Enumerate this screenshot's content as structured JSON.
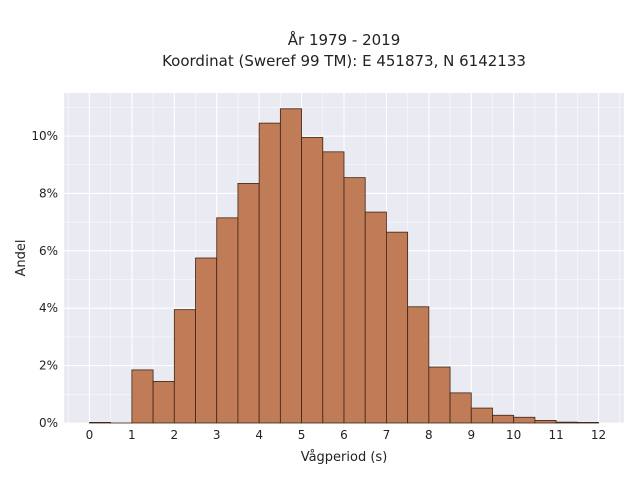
{
  "chart_data": {
    "type": "bar",
    "title": "År 1979 - 2019",
    "subtitle": "Koordinat (Sweref 99 TM): E 451873, N 6142133",
    "xlabel": "Vågperiod (s)",
    "ylabel": "Andel",
    "xlim": [
      -0.6,
      12.6
    ],
    "ylim": [
      0,
      11.5
    ],
    "x_ticks": [
      "0",
      "1",
      "2",
      "3",
      "4",
      "5",
      "6",
      "7",
      "8",
      "9",
      "10",
      "11",
      "12"
    ],
    "y_ticks": [
      "0%",
      "2%",
      "4%",
      "6%",
      "8%",
      "10%"
    ],
    "bin_width": 0.5,
    "bin_starts": [
      0,
      0.5,
      1,
      1.5,
      2,
      2.5,
      3,
      3.5,
      4,
      4.5,
      5,
      5.5,
      6,
      6.5,
      7,
      7.5,
      8,
      8.5,
      9,
      9.5,
      10,
      10.5,
      11,
      11.5
    ],
    "values": [
      0.02,
      0.0,
      1.85,
      1.45,
      3.95,
      5.75,
      7.15,
      8.35,
      10.45,
      10.95,
      9.95,
      9.45,
      8.55,
      7.35,
      6.65,
      4.05,
      1.95,
      1.05,
      0.52,
      0.27,
      0.2,
      0.09,
      0.03,
      0.02
    ],
    "grid": true,
    "colors": {
      "bar_fill": "#c07c56",
      "bar_edge": "#3d2416",
      "plot_background": "#eaeaf2",
      "grid": "#ffffff"
    }
  }
}
